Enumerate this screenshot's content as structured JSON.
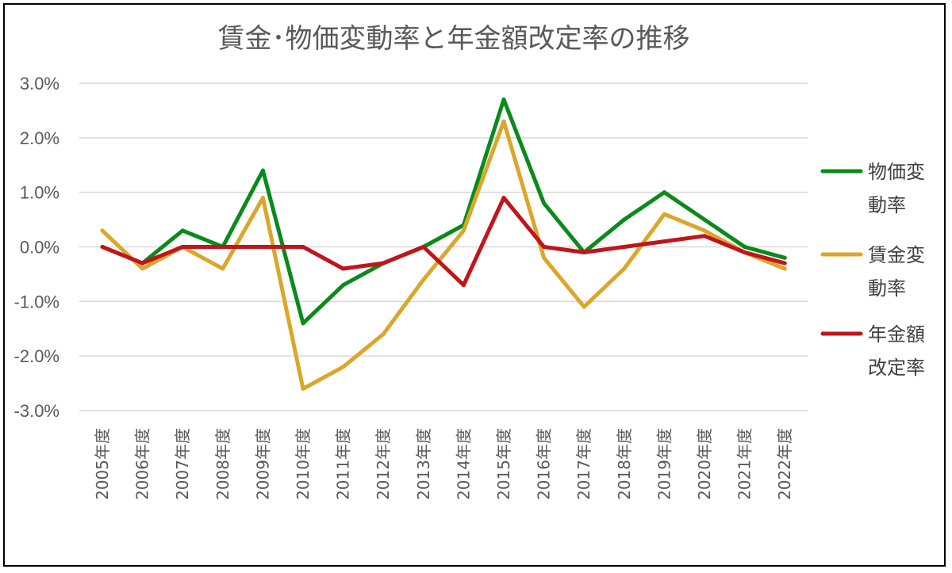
{
  "chart_data": {
    "type": "line",
    "title": "賃金･物価変動率と年金額改定率の推移",
    "xlabel": "",
    "ylabel": "",
    "ylim": [
      -3,
      3
    ],
    "y_ticks": [
      3,
      2,
      1,
      0,
      -1,
      -2,
      -3
    ],
    "y_tick_labels": [
      "3.0%",
      "2.0%",
      "1.0%",
      "0.0%",
      "-1.0%",
      "-2.0%",
      "-3.0%"
    ],
    "categories": [
      "2005年度",
      "2006年度",
      "2007年度",
      "2008年度",
      "2009年度",
      "2010年度",
      "2011年度",
      "2012年度",
      "2013年度",
      "2014年度",
      "2015年度",
      "2016年度",
      "2017年度",
      "2018年度",
      "2019年度",
      "2020年度",
      "2021年度",
      "2022年度"
    ],
    "grid": true,
    "legend_position": "right",
    "series": [
      {
        "name_lines": [
          "物価変",
          "動率"
        ],
        "color": "#0b8a1c",
        "values": [
          null,
          -0.3,
          0.3,
          0.0,
          1.4,
          -1.4,
          -0.7,
          -0.3,
          0.0,
          0.4,
          2.7,
          0.8,
          -0.1,
          0.5,
          1.0,
          0.5,
          0.0,
          -0.2
        ]
      },
      {
        "name_lines": [
          "賃金変",
          "動率"
        ],
        "color": "#dba62a",
        "values": [
          0.3,
          -0.4,
          0.0,
          -0.4,
          0.9,
          -2.6,
          -2.2,
          -1.6,
          -0.6,
          0.3,
          2.3,
          -0.2,
          -1.1,
          -0.4,
          0.6,
          0.3,
          -0.1,
          -0.4
        ]
      },
      {
        "name_lines": [
          "年金額",
          "改定率"
        ],
        "color": "#c0151c",
        "values": [
          0.0,
          -0.3,
          0.0,
          0.0,
          0.0,
          0.0,
          -0.4,
          -0.3,
          0.0,
          -0.7,
          0.9,
          0.0,
          -0.1,
          0.0,
          0.1,
          0.2,
          -0.1,
          -0.3
        ]
      }
    ]
  }
}
